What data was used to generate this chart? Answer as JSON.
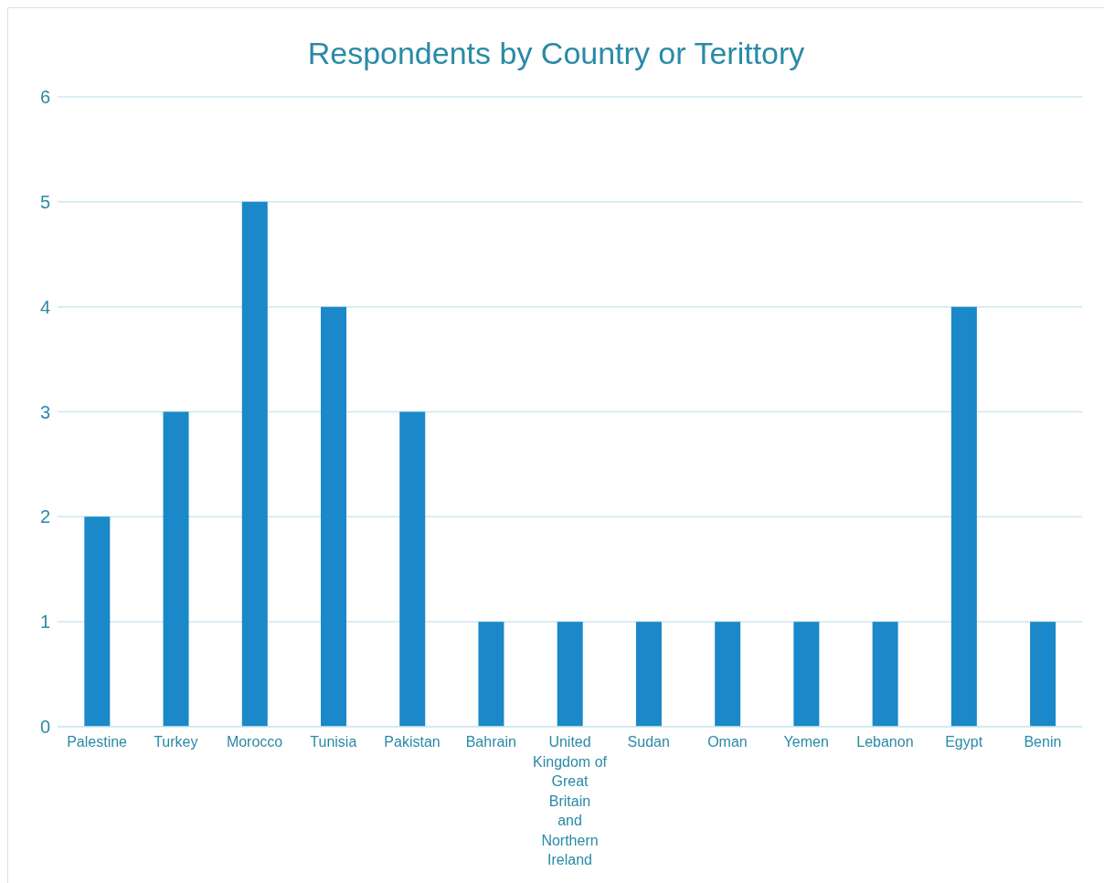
{
  "chart_data": {
    "type": "bar",
    "title": "Respondents by Country or Terittory",
    "categories": [
      "Palestine",
      "Turkey",
      "Morocco",
      "Tunisia",
      "Pakistan",
      "Bahrain",
      "United Kingdom of Great Britain and Northern Ireland",
      "Sudan",
      "Oman",
      "Yemen",
      "Lebanon",
      "Egypt",
      "Benin"
    ],
    "values": [
      2,
      3,
      5,
      4,
      3,
      1,
      1,
      1,
      1,
      1,
      1,
      4,
      1
    ],
    "color": "#1a88c9",
    "ylim": [
      0,
      6
    ],
    "yticks": [
      0,
      1,
      2,
      3,
      4,
      5,
      6
    ],
    "grid": "y"
  }
}
